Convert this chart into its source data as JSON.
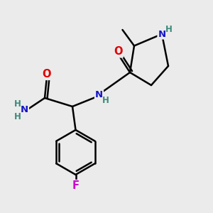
{
  "bg_color": "#ebebeb",
  "atom_colors": {
    "C": "#000000",
    "N": "#1414c8",
    "O": "#e00000",
    "F": "#cc00cc",
    "H": "#3a8a7a"
  },
  "bond_color": "#000000",
  "bond_width": 1.8
}
